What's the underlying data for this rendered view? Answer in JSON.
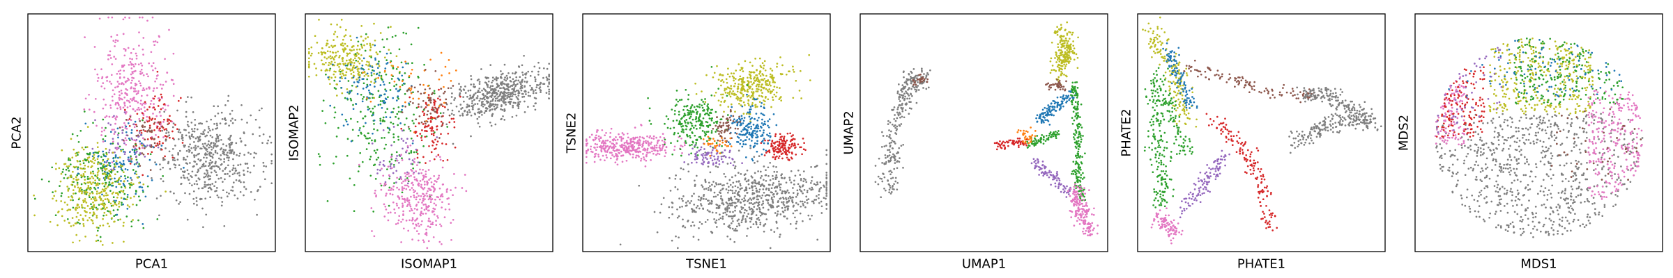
{
  "palette": {
    "olive": "#bcbd22",
    "pink": "#e377c2",
    "gray": "#7f7f7f",
    "green": "#2ca02c",
    "blue": "#1f77b4",
    "red": "#d62728",
    "purple": "#9467bd",
    "brown": "#8c564b",
    "orange": "#ff7f0e"
  },
  "chart_data": [
    {
      "type": "scatter",
      "xlabel": "PCA1",
      "ylabel": "PCA2",
      "ticks": false,
      "grid": false,
      "clusters": [
        {
          "color": "gray",
          "n": 520,
          "cx": 0.73,
          "cy": 0.6,
          "sx": 0.1,
          "sy": 0.1,
          "rot": -0.35
        },
        {
          "color": "pink",
          "n": 330,
          "cx": 0.42,
          "cy": 0.31,
          "sx": 0.08,
          "sy": 0.12
        },
        {
          "color": "red",
          "n": 90,
          "cx": 0.52,
          "cy": 0.48,
          "sx": 0.05,
          "sy": 0.07
        },
        {
          "color": "brown",
          "n": 50,
          "cx": 0.48,
          "cy": 0.52,
          "sx": 0.05,
          "sy": 0.05
        },
        {
          "color": "green",
          "n": 230,
          "cx": 0.3,
          "cy": 0.69,
          "sx": 0.09,
          "sy": 0.1
        },
        {
          "color": "blue",
          "n": 110,
          "cx": 0.38,
          "cy": 0.62,
          "sx": 0.07,
          "sy": 0.08
        },
        {
          "color": "purple",
          "n": 50,
          "cx": 0.4,
          "cy": 0.55,
          "sx": 0.06,
          "sy": 0.06
        },
        {
          "color": "olive",
          "n": 350,
          "cx": 0.27,
          "cy": 0.74,
          "sx": 0.08,
          "sy": 0.09
        }
      ]
    },
    {
      "type": "scatter",
      "xlabel": "ISOMAP1",
      "ylabel": "ISOMAP2",
      "ticks": false,
      "grid": false,
      "clusters": [
        {
          "color": "gray",
          "n": 520,
          "cx": 0.78,
          "cy": 0.34,
          "sx": 0.1,
          "sy": 0.045,
          "rot": -0.3
        },
        {
          "color": "olive",
          "n": 260,
          "cx": 0.16,
          "cy": 0.19,
          "sx": 0.08,
          "sy": 0.06
        },
        {
          "color": "green",
          "n": 260,
          "cx": 0.3,
          "cy": 0.42,
          "sx": 0.1,
          "sy": 0.16
        },
        {
          "color": "blue",
          "n": 110,
          "cx": 0.28,
          "cy": 0.33,
          "sx": 0.08,
          "sy": 0.09
        },
        {
          "color": "orange",
          "n": 45,
          "cx": 0.45,
          "cy": 0.3,
          "sx": 0.08,
          "sy": 0.08
        },
        {
          "color": "red",
          "n": 110,
          "cx": 0.52,
          "cy": 0.47,
          "sx": 0.045,
          "sy": 0.07
        },
        {
          "color": "brown",
          "n": 60,
          "cx": 0.5,
          "cy": 0.38,
          "sx": 0.05,
          "sy": 0.06
        },
        {
          "color": "purple",
          "n": 50,
          "cx": 0.38,
          "cy": 0.6,
          "sx": 0.05,
          "sy": 0.06
        },
        {
          "color": "pink",
          "n": 330,
          "cx": 0.45,
          "cy": 0.77,
          "sx": 0.07,
          "sy": 0.09
        }
      ]
    },
    {
      "type": "scatter",
      "xlabel": "TSNE1",
      "ylabel": "TSNE2",
      "ticks": false,
      "grid": false,
      "clusters": [
        {
          "color": "gray",
          "n": 720,
          "cx": 0.68,
          "cy": 0.78,
          "sx": 0.16,
          "sy": 0.07,
          "rot": -0.08
        },
        {
          "color": "pink",
          "n": 360,
          "cx": 0.18,
          "cy": 0.56,
          "sx": 0.09,
          "sy": 0.03
        },
        {
          "color": "olive",
          "n": 330,
          "cx": 0.68,
          "cy": 0.3,
          "sx": 0.08,
          "sy": 0.045,
          "rot": -0.2
        },
        {
          "color": "green",
          "n": 230,
          "cx": 0.45,
          "cy": 0.45,
          "sx": 0.06,
          "sy": 0.06,
          "rot": -0.4
        },
        {
          "color": "blue",
          "n": 180,
          "cx": 0.68,
          "cy": 0.48,
          "sx": 0.04,
          "sy": 0.05
        },
        {
          "color": "red",
          "n": 140,
          "cx": 0.81,
          "cy": 0.56,
          "sx": 0.035,
          "sy": 0.025
        },
        {
          "color": "purple",
          "n": 80,
          "cx": 0.52,
          "cy": 0.6,
          "sx": 0.05,
          "sy": 0.02
        },
        {
          "color": "brown",
          "n": 60,
          "cx": 0.58,
          "cy": 0.48,
          "sx": 0.025,
          "sy": 0.03
        },
        {
          "color": "orange",
          "n": 30,
          "cx": 0.54,
          "cy": 0.55,
          "sx": 0.03,
          "sy": 0.02
        }
      ]
    },
    {
      "type": "scatter",
      "xlabel": "UMAP1",
      "ylabel": "UMAP2",
      "ticks": false,
      "grid": false,
      "clusters": [
        {
          "color": "gray",
          "n": 200,
          "path": [
            [
              0.2,
              0.3
            ],
            [
              0.14,
              0.48
            ],
            [
              0.12,
              0.64
            ],
            [
              0.12,
              0.74
            ]
          ],
          "w": 0.02
        },
        {
          "color": "gray",
          "n": 80,
          "path": [
            [
              0.18,
              0.3
            ],
            [
              0.22,
              0.27
            ],
            [
              0.26,
              0.27
            ]
          ],
          "w": 0.018
        },
        {
          "color": "brown",
          "n": 25,
          "path": [
            [
              0.22,
              0.27
            ],
            [
              0.26,
              0.28
            ]
          ],
          "w": 0.012
        },
        {
          "color": "olive",
          "n": 210,
          "path": [
            [
              0.82,
              0.08
            ],
            [
              0.84,
              0.16
            ],
            [
              0.8,
              0.25
            ]
          ],
          "w": 0.02
        },
        {
          "color": "brown",
          "n": 40,
          "path": [
            [
              0.76,
              0.3
            ],
            [
              0.82,
              0.3
            ]
          ],
          "w": 0.012
        },
        {
          "color": "blue",
          "n": 120,
          "path": [
            [
              0.85,
              0.34
            ],
            [
              0.72,
              0.45
            ]
          ],
          "w": 0.012
        },
        {
          "color": "green",
          "n": 200,
          "path": [
            [
              0.86,
              0.3
            ],
            [
              0.88,
              0.5
            ],
            [
              0.88,
              0.7
            ],
            [
              0.9,
              0.78
            ]
          ],
          "w": 0.01
        },
        {
          "color": "green",
          "n": 70,
          "path": [
            [
              0.8,
              0.5
            ],
            [
              0.68,
              0.55
            ]
          ],
          "w": 0.01
        },
        {
          "color": "red",
          "n": 60,
          "path": [
            [
              0.55,
              0.55
            ],
            [
              0.68,
              0.54
            ]
          ],
          "w": 0.01
        },
        {
          "color": "orange",
          "n": 30,
          "path": [
            [
              0.64,
              0.5
            ],
            [
              0.7,
              0.53
            ]
          ],
          "w": 0.014
        },
        {
          "color": "purple",
          "n": 90,
          "path": [
            [
              0.7,
              0.62
            ],
            [
              0.85,
              0.75
            ]
          ],
          "w": 0.012
        },
        {
          "color": "pink",
          "n": 170,
          "path": [
            [
              0.87,
              0.74
            ],
            [
              0.9,
              0.85
            ],
            [
              0.93,
              0.92
            ]
          ],
          "w": 0.018
        }
      ]
    },
    {
      "type": "scatter",
      "xlabel": "PHATE1",
      "ylabel": "PHATE2",
      "ticks": false,
      "grid": false,
      "clusters": [
        {
          "color": "olive",
          "n": 170,
          "path": [
            [
              0.05,
              0.05
            ],
            [
              0.15,
              0.25
            ],
            [
              0.2,
              0.45
            ]
          ],
          "w": 0.02
        },
        {
          "color": "blue",
          "n": 100,
          "path": [
            [
              0.12,
              0.15
            ],
            [
              0.22,
              0.4
            ]
          ],
          "w": 0.016
        },
        {
          "color": "green",
          "n": 200,
          "path": [
            [
              0.08,
              0.25
            ],
            [
              0.08,
              0.55
            ],
            [
              0.1,
              0.8
            ]
          ],
          "w": 0.02
        },
        {
          "color": "green",
          "n": 70,
          "path": [
            [
              0.12,
              0.35
            ],
            [
              0.2,
              0.6
            ]
          ],
          "w": 0.015
        },
        {
          "color": "brown",
          "n": 110,
          "path": [
            [
              0.2,
              0.22
            ],
            [
              0.5,
              0.32
            ],
            [
              0.72,
              0.35
            ]
          ],
          "w": 0.015
        },
        {
          "color": "gray",
          "n": 350,
          "path": [
            [
              0.62,
              0.55
            ],
            [
              0.8,
              0.45
            ],
            [
              0.95,
              0.45
            ],
            [
              0.8,
              0.35
            ],
            [
              0.66,
              0.33
            ]
          ],
          "w": 0.018
        },
        {
          "color": "red",
          "n": 150,
          "path": [
            [
              0.3,
              0.45
            ],
            [
              0.42,
              0.55
            ],
            [
              0.5,
              0.7
            ],
            [
              0.53,
              0.9
            ]
          ],
          "w": 0.018
        },
        {
          "color": "purple",
          "n": 110,
          "path": [
            [
              0.35,
              0.6
            ],
            [
              0.18,
              0.83
            ]
          ],
          "w": 0.018
        },
        {
          "color": "pink",
          "n": 90,
          "path": [
            [
              0.08,
              0.85
            ],
            [
              0.15,
              0.92
            ]
          ],
          "w": 0.02
        }
      ]
    },
    {
      "type": "scatter",
      "xlabel": "MDS1",
      "ylabel": "MDS2",
      "ticks": false,
      "grid": false,
      "clusters": [
        {
          "color": "gray",
          "n": 900,
          "disc": true,
          "cx": 0.5,
          "cy": 0.52,
          "r": 0.42,
          "ymin": 0.42
        },
        {
          "color": "olive",
          "n": 360,
          "disc": true,
          "cx": 0.5,
          "cy": 0.52,
          "r": 0.42,
          "ymax": 0.42,
          "xmin": 0.3,
          "xmax": 0.72
        },
        {
          "color": "green",
          "n": 200,
          "disc": true,
          "cx": 0.5,
          "cy": 0.52,
          "r": 0.42,
          "ymax": 0.38,
          "xmin": 0.4,
          "xmax": 0.85
        },
        {
          "color": "pink",
          "n": 260,
          "disc": true,
          "cx": 0.5,
          "cy": 0.52,
          "r": 0.42,
          "xmin": 0.7,
          "ymin": 0.32,
          "ymax": 0.78
        },
        {
          "color": "pink",
          "n": 120,
          "disc": true,
          "cx": 0.5,
          "cy": 0.52,
          "r": 0.42,
          "xmax": 0.2,
          "ymin": 0.2,
          "ymax": 0.55
        },
        {
          "color": "red",
          "n": 140,
          "disc": true,
          "cx": 0.5,
          "cy": 0.52,
          "r": 0.42,
          "xmax": 0.28,
          "ymin": 0.22,
          "ymax": 0.52
        },
        {
          "color": "blue",
          "n": 90,
          "disc": true,
          "cx": 0.5,
          "cy": 0.52,
          "r": 0.42,
          "ymax": 0.35
        },
        {
          "color": "purple",
          "n": 50,
          "disc": true,
          "cx": 0.5,
          "cy": 0.52,
          "r": 0.42,
          "xmax": 0.35,
          "ymax": 0.5
        },
        {
          "color": "brown",
          "n": 40,
          "disc": true,
          "cx": 0.5,
          "cy": 0.52,
          "r": 0.42,
          "xmin": 0.55,
          "ymin": 0.4,
          "ymax": 0.7
        }
      ]
    }
  ]
}
